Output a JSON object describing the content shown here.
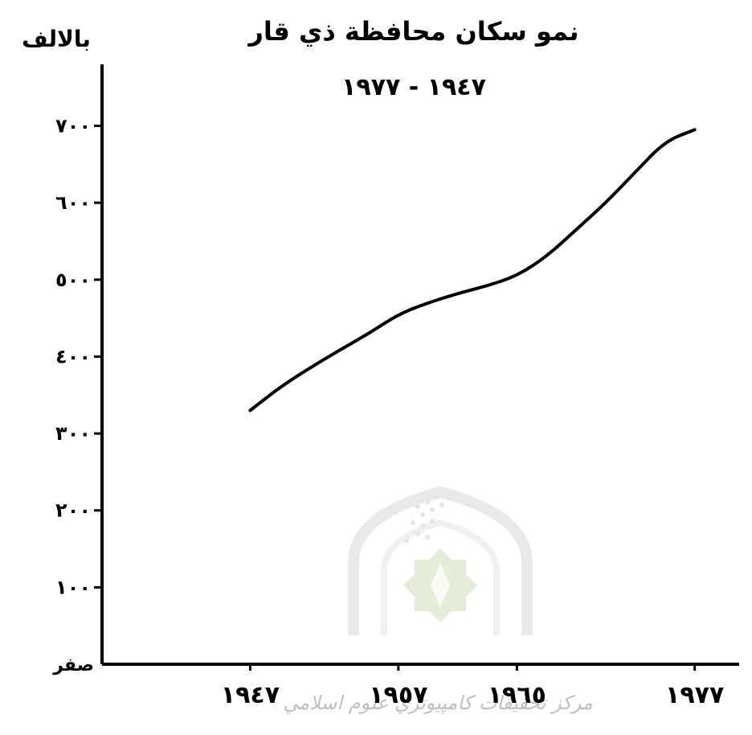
{
  "chart_data": {
    "type": "line",
    "title": "نمو سكان محافظة ذي قار",
    "subtitle": "١٩٤٧ - ١٩٧٧",
    "ylabel": "بالالف",
    "y_zero_label": "صفر",
    "y_tick_labels": [
      "١٠٠",
      "٢٠٠",
      "٣٠٠",
      "٤٠٠",
      "٥٠٠",
      "٦٠٠",
      "٧٠٠"
    ],
    "y_tick_values": [
      100,
      200,
      300,
      400,
      500,
      600,
      700
    ],
    "x_tick_labels": [
      "١٩٤٧",
      "١٩٥٧",
      "١٩٦٥",
      "١٩٧٧"
    ],
    "x_tick_values": [
      1947,
      1957,
      1965,
      1977
    ],
    "xlim": [
      1937,
      1980
    ],
    "ylim": [
      0,
      780
    ],
    "grid": false,
    "series": [
      {
        "x": [
          1947,
          1949,
          1951,
          1953,
          1955,
          1957,
          1959,
          1961,
          1963,
          1965,
          1967,
          1969,
          1971,
          1973,
          1975,
          1977
        ],
        "y": [
          330,
          360,
          385,
          408,
          430,
          455,
          470,
          482,
          492,
          505,
          530,
          565,
          600,
          640,
          680,
          695
        ]
      }
    ]
  },
  "watermark": {
    "text": "مركز تحقيقات كامپيوتري علوم اسلامي",
    "color": "#c8c8c8",
    "icon": "mosque-dome-logo"
  },
  "colors": {
    "line": "#000000",
    "axis": "#000000",
    "background": "#ffffff",
    "emblem": "#dcdcdc"
  }
}
